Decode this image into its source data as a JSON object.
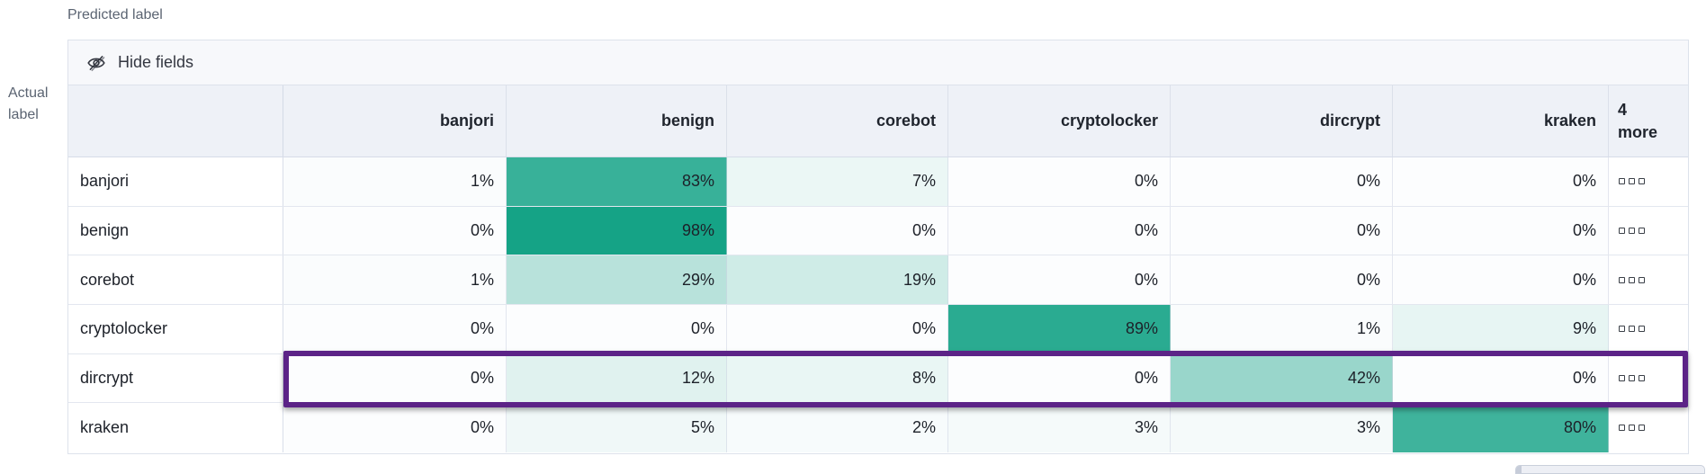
{
  "labels": {
    "predicted": "Predicted label",
    "actual_lines": [
      "Actual",
      "label"
    ]
  },
  "toolbar": {
    "hide_fields_label": "Hide fields"
  },
  "grid": {
    "column_headers": [
      "banjori",
      "benign",
      "corebot",
      "cryptolocker",
      "dircrypt",
      "kraken"
    ],
    "more_header": {
      "count": "4",
      "word": "more"
    }
  },
  "chart_data": {
    "type": "heatmap",
    "xlabel": "Predicted label",
    "ylabel": "Actual label",
    "x_categories": [
      "banjori",
      "benign",
      "corebot",
      "cryptolocker",
      "dircrypt",
      "kraken"
    ],
    "y_categories": [
      "banjori",
      "benign",
      "corebot",
      "cryptolocker",
      "dircrypt",
      "kraken"
    ],
    "hidden_columns_indicator": "4 more",
    "values_percent": [
      [
        1,
        83,
        7,
        0,
        0,
        0
      ],
      [
        0,
        98,
        0,
        0,
        0,
        0
      ],
      [
        1,
        29,
        19,
        0,
        0,
        0
      ],
      [
        0,
        0,
        0,
        89,
        1,
        9
      ],
      [
        0,
        12,
        8,
        0,
        42,
        0
      ],
      [
        0,
        5,
        2,
        3,
        3,
        80
      ]
    ],
    "value_suffix": "%",
    "highlighted_row": "dircrypt",
    "color_scale": {
      "min_color": "#fcfdfe",
      "max_color": "#10a184",
      "domain": [
        0,
        100
      ]
    }
  },
  "colors": {
    "accent_teal": "#10a184",
    "highlight_purple": "#5c2387",
    "header_bg": "#eef1f7",
    "toolbar_bg": "#f7f8fb",
    "border": "#dde2eb",
    "text": "#1d2129",
    "secondary_text": "#5b6472"
  }
}
